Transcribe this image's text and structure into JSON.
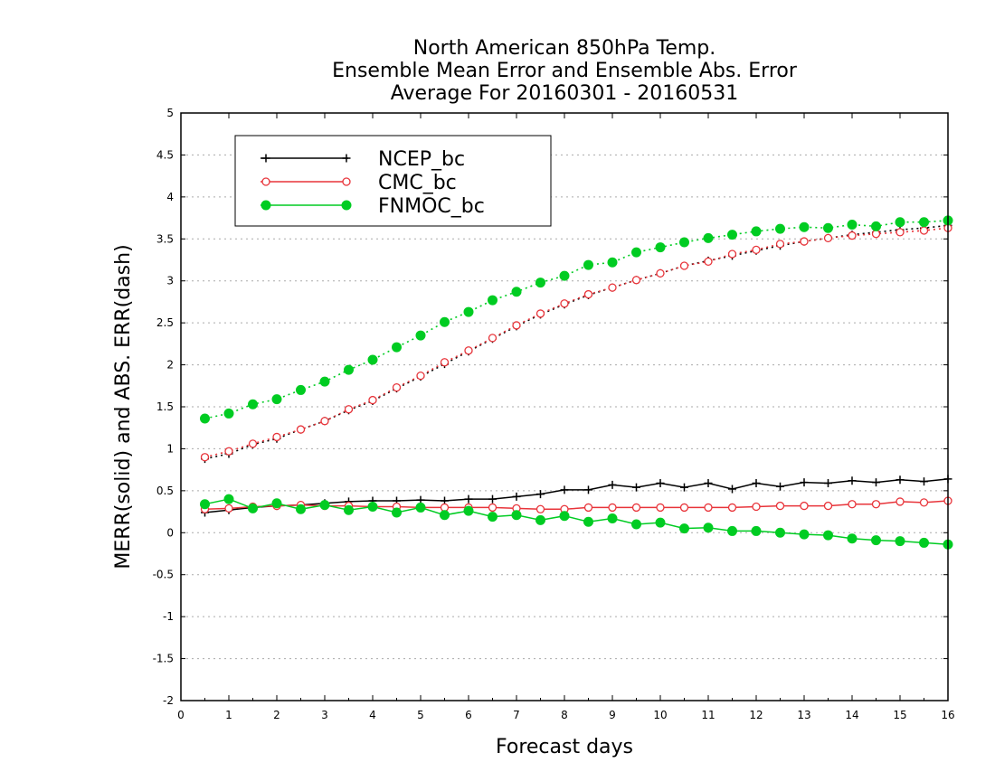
{
  "chart_data": {
    "type": "line",
    "title": [
      "North American 850hPa Temp.",
      "Ensemble Mean Error and Ensemble Abs. Error",
      "Average For 20160301 - 20160531"
    ],
    "xlabel": "Forecast days",
    "ylabel": "MERR(solid) and ABS. ERR(dash)",
    "xlim": [
      0,
      16
    ],
    "ylim": [
      -2,
      5
    ],
    "xticks": [
      "0",
      "1",
      "2",
      "3",
      "4",
      "5",
      "6",
      "7",
      "8",
      "9",
      "10",
      "11",
      "12",
      "13",
      "14",
      "15",
      "16"
    ],
    "yticks": [
      "-2",
      "-1.5",
      "-1",
      "-0.5",
      "0",
      "0.5",
      "1",
      "1.5",
      "2",
      "2.5",
      "3",
      "3.5",
      "4",
      "4.5",
      "5"
    ],
    "grid": true,
    "legend_position": "top-left",
    "x": [
      0.5,
      1,
      1.5,
      2,
      2.5,
      3,
      3.5,
      4,
      4.5,
      5,
      5.5,
      6,
      6.5,
      7,
      7.5,
      8,
      8.5,
      9,
      9.5,
      10,
      10.5,
      11,
      11.5,
      12,
      12.5,
      13,
      13.5,
      14,
      14.5,
      15,
      15.5,
      16
    ],
    "series": [
      {
        "name": "NCEP_bc",
        "color": "#000000",
        "marker": "plus",
        "style": "solid",
        "values": [
          0.24,
          0.27,
          0.3,
          0.32,
          0.33,
          0.35,
          0.37,
          0.38,
          0.38,
          0.39,
          0.38,
          0.4,
          0.4,
          0.43,
          0.46,
          0.51,
          0.51,
          0.57,
          0.54,
          0.59,
          0.54,
          0.59,
          0.52,
          0.59,
          0.55,
          0.6,
          0.59,
          0.62,
          0.6,
          0.63,
          0.61,
          0.64
        ]
      },
      {
        "name": "",
        "color": "#000000",
        "marker": "plus",
        "style": "dash",
        "values": [
          0.88,
          0.94,
          1.05,
          1.12,
          1.23,
          1.33,
          1.46,
          1.57,
          1.72,
          1.86,
          2.01,
          2.16,
          2.31,
          2.46,
          2.6,
          2.72,
          2.83,
          2.92,
          3.01,
          3.09,
          3.18,
          3.24,
          3.3,
          3.36,
          3.42,
          3.47,
          3.51,
          3.55,
          3.58,
          3.61,
          3.63,
          3.66
        ]
      },
      {
        "name": "CMC_bc",
        "color": "#e8343a",
        "marker": "open-circle",
        "style": "solid",
        "values": [
          0.28,
          0.29,
          0.31,
          0.32,
          0.33,
          0.32,
          0.32,
          0.31,
          0.31,
          0.3,
          0.3,
          0.3,
          0.3,
          0.29,
          0.28,
          0.28,
          0.3,
          0.3,
          0.3,
          0.3,
          0.3,
          0.3,
          0.3,
          0.31,
          0.32,
          0.32,
          0.32,
          0.34,
          0.34,
          0.37,
          0.36,
          0.38
        ]
      },
      {
        "name": "",
        "color": "#e8343a",
        "marker": "open-circle",
        "style": "dash",
        "values": [
          0.9,
          0.97,
          1.06,
          1.14,
          1.23,
          1.33,
          1.47,
          1.58,
          1.73,
          1.87,
          2.03,
          2.17,
          2.32,
          2.47,
          2.61,
          2.73,
          2.84,
          2.92,
          3.01,
          3.09,
          3.18,
          3.23,
          3.32,
          3.37,
          3.44,
          3.47,
          3.51,
          3.54,
          3.56,
          3.58,
          3.6,
          3.63
        ]
      },
      {
        "name": "FNMOC_bc",
        "color": "#00cc22",
        "marker": "filled-circle",
        "style": "solid",
        "values": [
          0.34,
          0.4,
          0.29,
          0.35,
          0.28,
          0.33,
          0.27,
          0.31,
          0.24,
          0.3,
          0.21,
          0.26,
          0.19,
          0.21,
          0.15,
          0.2,
          0.13,
          0.17,
          0.1,
          0.12,
          0.05,
          0.06,
          0.02,
          0.02,
          0.0,
          -0.02,
          -0.03,
          -0.07,
          -0.09,
          -0.1,
          -0.12,
          -0.14
        ]
      },
      {
        "name": "",
        "color": "#00cc22",
        "marker": "filled-circle",
        "style": "dash",
        "values": [
          1.36,
          1.42,
          1.53,
          1.59,
          1.7,
          1.8,
          1.94,
          2.06,
          2.21,
          2.35,
          2.51,
          2.63,
          2.77,
          2.87,
          2.98,
          3.06,
          3.19,
          3.22,
          3.34,
          3.4,
          3.46,
          3.51,
          3.55,
          3.59,
          3.62,
          3.64,
          3.63,
          3.67,
          3.65,
          3.7,
          3.7,
          3.72
        ]
      }
    ]
  }
}
